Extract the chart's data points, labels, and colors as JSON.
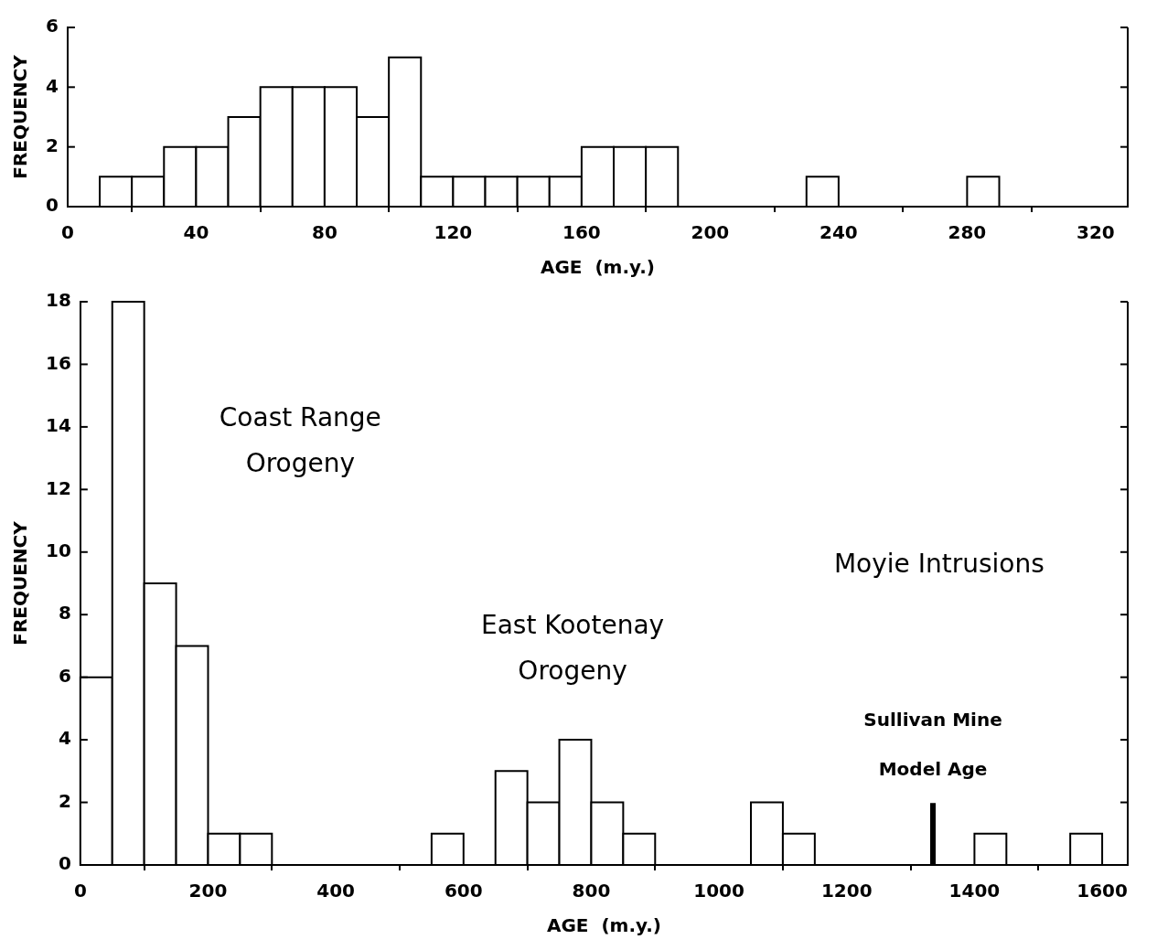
{
  "chart_data": [
    {
      "type": "histogram",
      "xlabel": "AGE  (m.y.)",
      "ylabel": "FREQUENCY",
      "color": "#ffffff",
      "bins": [
        10,
        20,
        30,
        40,
        50,
        60,
        70,
        80,
        90,
        100,
        110,
        120,
        130,
        140,
        150,
        160,
        170,
        180,
        190,
        200,
        210,
        220,
        230,
        240,
        250,
        260,
        270,
        280,
        290
      ],
      "values": [
        1,
        1,
        2,
        2,
        3,
        4,
        4,
        4,
        3,
        5,
        1,
        1,
        1,
        1,
        1,
        2,
        2,
        2,
        0,
        0,
        0,
        0,
        1,
        0,
        0,
        0,
        0,
        1
      ],
      "xlim": [
        0,
        330
      ],
      "xticks": [
        0,
        40,
        80,
        120,
        160,
        200,
        240,
        280,
        320
      ],
      "ylim": [
        0,
        6
      ],
      "yticks": [
        0,
        2,
        4,
        6
      ],
      "grid": false
    },
    {
      "type": "histogram",
      "xlabel": "AGE  (m.y.)",
      "ylabel": "FREQUENCY",
      "color": "#ffffff",
      "bins": [
        0,
        50,
        100,
        150,
        200,
        250,
        300,
        350,
        400,
        450,
        500,
        550,
        600,
        650,
        700,
        750,
        800,
        850,
        900,
        950,
        1000,
        1050,
        1100,
        1150,
        1200,
        1250,
        1300,
        1350,
        1400,
        1450,
        1500,
        1550,
        1600
      ],
      "values": [
        6,
        18,
        9,
        7,
        1,
        1,
        0,
        0,
        0,
        0,
        0,
        1,
        0,
        3,
        2,
        4,
        2,
        1,
        0,
        0,
        0,
        2,
        1,
        0,
        0,
        0,
        0,
        0,
        1,
        0,
        0,
        1
      ],
      "xlim": [
        0,
        1640
      ],
      "xticks": [
        0,
        200,
        400,
        600,
        800,
        1000,
        1200,
        1400,
        1600
      ],
      "ylim": [
        0,
        18
      ],
      "yticks": [
        0,
        2,
        4,
        6,
        8,
        10,
        12,
        14,
        16,
        18
      ],
      "grid": false,
      "ref_lines": [
        {
          "axis": "x",
          "value": 1335,
          "label": "Sullivan Mine Model Age"
        }
      ],
      "annotations": [
        "Coast Range Orogeny",
        "East Kootenay Orogeny",
        "Moyie Intrusions"
      ]
    }
  ]
}
